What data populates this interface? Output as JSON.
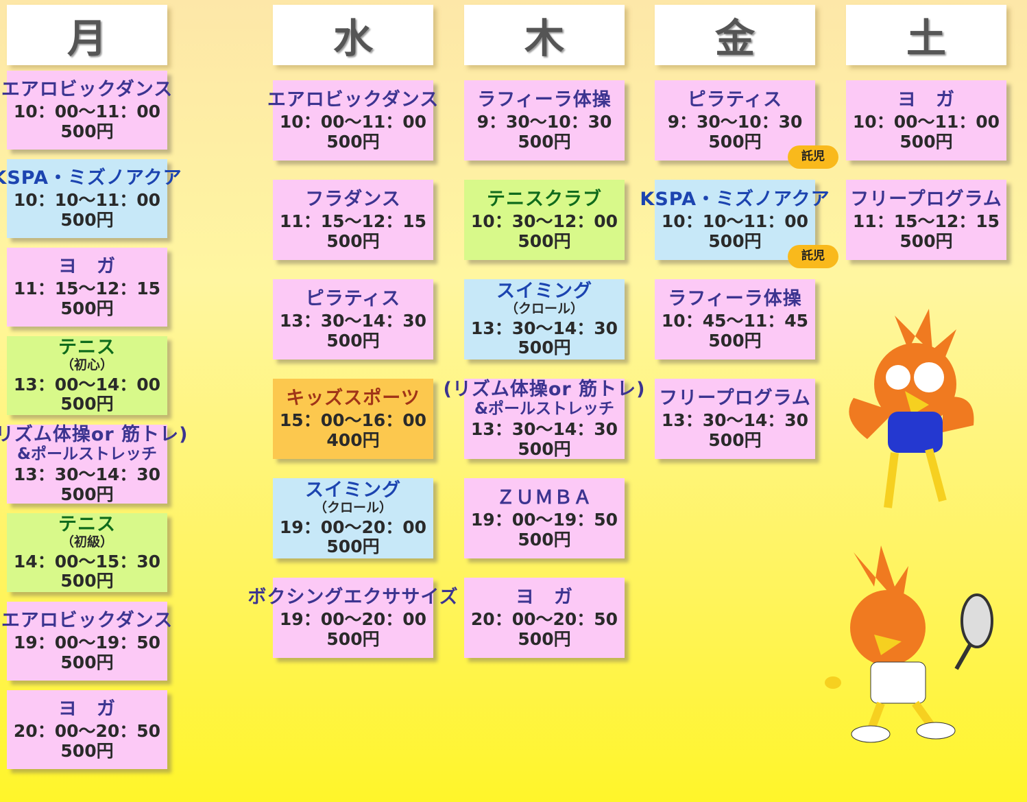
{
  "days": [
    {
      "label": "月",
      "classes": [
        {
          "name": "エアロビックダンス",
          "time": "10：00〜11：00",
          "price": "500円",
          "color": "pink"
        },
        {
          "name": "KSPA・ミズノアクア",
          "time": "10：10〜11：00",
          "price": "500円",
          "color": "blue"
        },
        {
          "name": "ヨ　ガ",
          "time": "11：15〜12：15",
          "price": "500円",
          "color": "pink"
        },
        {
          "name": "テニス",
          "sub": "（初心）",
          "time": "13：00〜14：00",
          "price": "500円",
          "color": "green"
        },
        {
          "name": "(リズム体操or 筋トレ)",
          "sub": "&ポールストレッチ",
          "time": "13：30〜14：30",
          "price": "500円",
          "color": "pink"
        },
        {
          "name": "テニス",
          "sub": "（初級）",
          "time": "14：00〜15：30",
          "price": "500円",
          "color": "green"
        },
        {
          "name": "エアロビックダンス",
          "time": "19：00〜19：50",
          "price": "500円",
          "color": "pink"
        },
        {
          "name": "ヨ　ガ",
          "time": "20：00〜20：50",
          "price": "500円",
          "color": "pink"
        }
      ]
    },
    {
      "label": "水",
      "classes": [
        {
          "name": "エアロビックダンス",
          "time": "10：00〜11：00",
          "price": "500円",
          "color": "pink"
        },
        {
          "name": "フラダンス",
          "time": "11：15〜12：15",
          "price": "500円",
          "color": "pink"
        },
        {
          "name": "ピラティス",
          "time": "13：30〜14：30",
          "price": "500円",
          "color": "pink"
        },
        {
          "name": "キッズスポーツ",
          "time": "15：00〜16：00",
          "price": "400円",
          "color": "orange"
        },
        {
          "name": "スイミング",
          "sub": "（クロール）",
          "time": "19：00〜20：00",
          "price": "500円",
          "color": "blue"
        },
        {
          "name": "ボクシングエクササイズ",
          "time": "19：00〜20：00",
          "price": "500円",
          "color": "pink"
        }
      ]
    },
    {
      "label": "木",
      "classes": [
        {
          "name": "ラフィーラ体操",
          "time": "9：30〜10：30",
          "price": "500円",
          "color": "pink"
        },
        {
          "name": "テニスクラブ",
          "time": "10：30〜12：00",
          "price": "500円",
          "color": "green"
        },
        {
          "name": "スイミング",
          "sub": "（クロール）",
          "time": "13：30〜14：30",
          "price": "500円",
          "color": "blue"
        },
        {
          "name": "(リズム体操or 筋トレ)",
          "sub": "&ポールストレッチ",
          "time": "13：30〜14：30",
          "price": "500円",
          "color": "pink"
        },
        {
          "name": "ＺＵＭＢＡ",
          "time": "19：00〜19：50",
          "price": "500円",
          "color": "pink"
        },
        {
          "name": "ヨ　ガ",
          "time": "20：00〜20：50",
          "price": "500円",
          "color": "pink"
        }
      ]
    },
    {
      "label": "金",
      "classes": [
        {
          "name": "ピラティス",
          "time": "9：30〜10：30",
          "price": "500円",
          "color": "pink",
          "badge": "託児"
        },
        {
          "name": "KSPA・ミズノアクア",
          "time": "10：10〜11：00",
          "price": "500円",
          "color": "blue",
          "badge": "託児"
        },
        {
          "name": "ラフィーラ体操",
          "time": "10：45〜11：45",
          "price": "500円",
          "color": "pink"
        },
        {
          "name": "フリープログラム",
          "time": "13：30〜14：30",
          "price": "500円",
          "color": "pink"
        }
      ]
    },
    {
      "label": "土",
      "classes": [
        {
          "name": "ヨ　ガ",
          "time": "10：00〜11：00",
          "price": "500円",
          "color": "pink"
        },
        {
          "name": "フリープログラム",
          "time": "11：15〜12：15",
          "price": "500円",
          "color": "pink"
        }
      ]
    }
  ]
}
